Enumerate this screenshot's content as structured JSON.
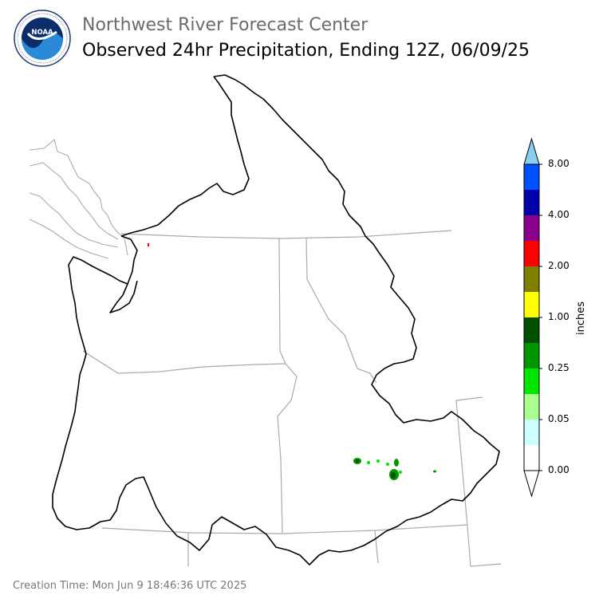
{
  "header": {
    "org": "Northwest River Forecast Center",
    "title": "Observed 24hr Precipitation, Ending 12Z, 06/09/25"
  },
  "logo": {
    "icon": "noaa-logo-icon",
    "text": "NOAA",
    "ring_text": "NATIONAL OCEANIC AND ATMOSPHERIC ADMINISTRATION · U.S. DEPARTMENT OF COMMERCE"
  },
  "colorbar": {
    "units": "inches",
    "colors": [
      "#ffffff",
      "#ccffff",
      "#aaff8f",
      "#00e600",
      "#009600",
      "#005000",
      "#ffff00",
      "#7f7f00",
      "#ff0000",
      "#8b008b",
      "#0000aa",
      "#0050ff",
      "#87d0ef"
    ],
    "ticks": [
      {
        "label": "0.00",
        "level": 0
      },
      {
        "label": "0.05",
        "level": 2
      },
      {
        "label": "0.25",
        "level": 4
      },
      {
        "label": "1.00",
        "level": 6
      },
      {
        "label": "2.00",
        "level": 8
      },
      {
        "label": "4.00",
        "level": 10
      },
      {
        "label": "8.00",
        "level": 12
      }
    ]
  },
  "footer": {
    "creation_time": "Creation Time: Mon Jun 9 18:46:36 UTC 2025"
  }
}
